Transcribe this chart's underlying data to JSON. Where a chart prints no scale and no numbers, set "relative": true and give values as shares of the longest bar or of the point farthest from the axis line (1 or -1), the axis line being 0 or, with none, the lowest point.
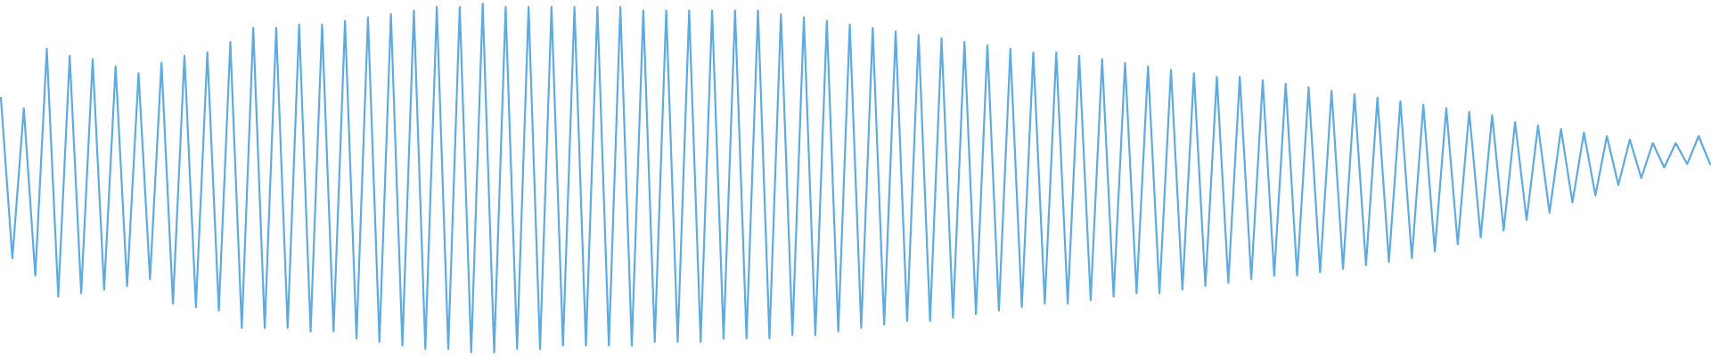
{
  "chart_data": {
    "type": "line",
    "relative": true,
    "categories": [
      null,
      null,
      null,
      null,
      null,
      null,
      null,
      null,
      null,
      null,
      null,
      null,
      null,
      null,
      null,
      null,
      null,
      null,
      null,
      null,
      null,
      null,
      null,
      null,
      null,
      null,
      null,
      null,
      null,
      null,
      null,
      null,
      null,
      null,
      null,
      null,
      null,
      null,
      null,
      null,
      null,
      null,
      null,
      null,
      null,
      null,
      null,
      null,
      null,
      null,
      null,
      null,
      null,
      null,
      null,
      null,
      null,
      null,
      null,
      null,
      null,
      null,
      null,
      null,
      null,
      null,
      null,
      null,
      null,
      null,
      null,
      null,
      null,
      null,
      null,
      null,
      null,
      null,
      null,
      null,
      null,
      null,
      null,
      null,
      null,
      null,
      null,
      null,
      null,
      null,
      null,
      null,
      null,
      null,
      null,
      null,
      null,
      null,
      null,
      null,
      null,
      null,
      null,
      null,
      null,
      null,
      null,
      null,
      null,
      null,
      null,
      null,
      null,
      null,
      null,
      null,
      null,
      null,
      null,
      null,
      null,
      null,
      null,
      null,
      null,
      null,
      null,
      null,
      null,
      null,
      null,
      null,
      null,
      null,
      null,
      null,
      null,
      null,
      null,
      null,
      null,
      null,
      null,
      null,
      null,
      null,
      null,
      null,
      null,
      null
    ],
    "series": [
      {
        "color": "#5dabe1",
        "values": [
          0.73,
          0.27,
          0.7,
          0.22,
          0.87,
          0.16,
          0.85,
          0.17,
          0.84,
          0.18,
          0.82,
          0.19,
          0.8,
          0.21,
          0.83,
          0.14,
          0.85,
          0.13,
          0.86,
          0.12,
          0.89,
          0.07,
          0.93,
          0.07,
          0.93,
          0.07,
          0.94,
          0.06,
          0.94,
          0.06,
          0.95,
          0.04,
          0.96,
          0.03,
          0.97,
          0.02,
          0.98,
          0.01,
          0.99,
          0.01,
          0.99,
          0.0,
          1.0,
          0.0,
          0.99,
          0.01,
          0.99,
          0.01,
          0.99,
          0.02,
          0.99,
          0.02,
          0.99,
          0.02,
          0.99,
          0.02,
          0.98,
          0.03,
          0.98,
          0.03,
          0.98,
          0.03,
          0.98,
          0.04,
          0.98,
          0.04,
          0.98,
          0.04,
          0.97,
          0.05,
          0.96,
          0.05,
          0.95,
          0.06,
          0.94,
          0.07,
          0.93,
          0.08,
          0.92,
          0.09,
          0.91,
          0.09,
          0.9,
          0.1,
          0.89,
          0.11,
          0.88,
          0.12,
          0.87,
          0.13,
          0.86,
          0.14,
          0.86,
          0.14,
          0.85,
          0.15,
          0.84,
          0.16,
          0.83,
          0.17,
          0.82,
          0.17,
          0.81,
          0.18,
          0.8,
          0.19,
          0.79,
          0.2,
          0.79,
          0.21,
          0.78,
          0.22,
          0.77,
          0.22,
          0.76,
          0.23,
          0.75,
          0.24,
          0.74,
          0.25,
          0.73,
          0.26,
          0.72,
          0.27,
          0.71,
          0.29,
          0.7,
          0.31,
          0.69,
          0.33,
          0.68,
          0.35,
          0.66,
          0.38,
          0.65,
          0.4,
          0.64,
          0.43,
          0.63,
          0.45,
          0.62,
          0.48,
          0.61,
          0.5,
          0.6,
          0.53,
          0.6,
          0.54,
          0.62,
          0.54
        ]
      }
    ]
  }
}
